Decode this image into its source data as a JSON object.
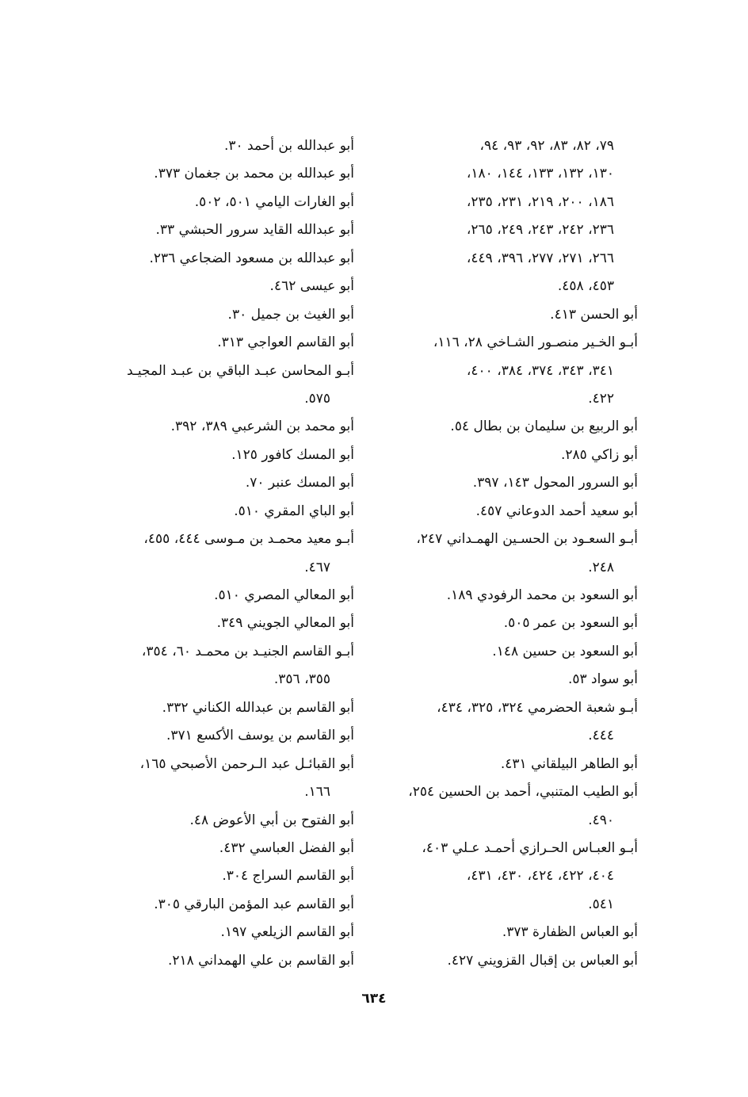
{
  "page_number": "٦٣٤",
  "columns": {
    "right": [
      {
        "lines": [
          "٧٩، ٨٢، ٨٣، ٩٢، ٩٣، ٩٤،",
          "١٣٠، ١٣٢، ١٣٣، ١٤٤، ١٨٠،",
          "١٨٦، ٢٠٠، ٢١٩، ٢٣١، ٢٣٥،",
          "٢٣٦، ٢٤٢، ٢٤٣، ٢٤٩، ٢٦٥،",
          "٢٦٦، ٢٧١، ٢٧٧، ٣٩٦، ٤٤٩،",
          "٤٥٣، ٤٥٨."
        ],
        "continued": true
      },
      {
        "lines": [
          "أبو الحسن ٤١٣."
        ]
      },
      {
        "lines": [
          "أبـو الخـير منصـور الشـاخي ٢٨، ١١٦،",
          "٣٤١، ٣٤٣، ٣٧٤، ٣٨٤، ٤٠٠،",
          "٤٢٢."
        ]
      },
      {
        "lines": [
          "أبو الربيع بن سليمان بن بطال ٥٤."
        ]
      },
      {
        "lines": [
          "أبو زاكي ٢٨٥."
        ]
      },
      {
        "lines": [
          "أبو السرور المحول ١٤٣، ٣٩٧."
        ]
      },
      {
        "lines": [
          "أبو سعيد أحمد الدوعاني ٤٥٧."
        ]
      },
      {
        "lines": [
          "أبـو السعـود بن الحسـين الهمـداني ٢٤٧،",
          "٢٤٨."
        ]
      },
      {
        "lines": [
          "أبو السعود بن محمد الرفودي ١٨٩."
        ]
      },
      {
        "lines": [
          "أبو السعود بن عمر ٥٠٥."
        ]
      },
      {
        "lines": [
          "أبو السعود بن حسين ١٤٨."
        ]
      },
      {
        "lines": [
          "أبو سواد ٥٣."
        ]
      },
      {
        "lines": [
          "أبـو شعبة الحضرمي ٣٢٤، ٣٢٥، ٤٣٤،",
          "٤٤٤."
        ]
      },
      {
        "lines": [
          "أبو الطاهر البيلقاني ٤٣١."
        ]
      },
      {
        "lines": [
          "أبو الطيب المتنبي، أحمد بن الحسين ٢٥٤،",
          "٤٩٠."
        ]
      },
      {
        "lines": [
          "أبـو العبـاس الحـرازي أحمـد عـلي ٤٠٣،",
          "٤٠٤، ٤٢٢، ٤٢٤، ٤٣٠، ٤٣١،",
          "٥٤١."
        ]
      },
      {
        "lines": [
          "أبو العباس الظفارة ٣٧٣."
        ]
      },
      {
        "lines": [
          "أبو العباس بن إقبال القزويني ٤٢٧."
        ]
      }
    ],
    "left": [
      {
        "lines": [
          "أبو عبدالله بن أحمد ٣٠."
        ]
      },
      {
        "lines": [
          "أبو عبدالله بن محمد بن جغمان ٣٧٣."
        ]
      },
      {
        "lines": [
          "أبو الغارات اليامي ٥٠١، ٥٠٢."
        ]
      },
      {
        "lines": [
          "أبو عبدالله القايد سرور الحبشي ٣٣."
        ]
      },
      {
        "lines": [
          "أبو عبدالله بن مسعود الضجاعي ٢٣٦."
        ]
      },
      {
        "lines": [
          "أبو عيسى ٤٦٢."
        ]
      },
      {
        "lines": [
          "أبو الغيث بن جميل ٣٠."
        ]
      },
      {
        "lines": [
          "أبو القاسم العواجي ٣١٣."
        ]
      },
      {
        "lines": [
          "أبـو المحاسن عبـد الباقي بن عبـد المجيـد",
          "٥٧٥."
        ]
      },
      {
        "lines": [
          "أبو محمد بن الشرعبي ٣٨٩، ٣٩٢."
        ]
      },
      {
        "lines": [
          "أبو المسك كافور ١٢٥."
        ]
      },
      {
        "lines": [
          "أبو المسك عنبر ٧٠."
        ]
      },
      {
        "lines": [
          "أبو الباي المقري ٥١٠."
        ]
      },
      {
        "lines": [
          "أبـو معيد محمـد بن مـوسى ٤٤٤، ٤٥٥،",
          "٤٦٧."
        ]
      },
      {
        "lines": [
          "أبو المعالي المصري ٥١٠."
        ]
      },
      {
        "lines": [
          "أبو المعالي الجويني ٣٤٩."
        ]
      },
      {
        "lines": [
          "أبـو القاسم الجنيـد بن محمـد ٦٠، ٣٥٤،",
          "٣٥٥، ٣٥٦."
        ]
      },
      {
        "lines": [
          "أبو القاسم بن عبدالله الكناني ٣٣٢."
        ]
      },
      {
        "lines": [
          "أبو القاسم بن يوسف الأكسع ٣٧١."
        ]
      },
      {
        "lines": [
          "أبو القبائـل عبد الـرحمن الأصبحي ١٦٥،",
          "١٦٦."
        ]
      },
      {
        "lines": [
          "أبو الفتوح بن أبي الأعوض ٤٨."
        ]
      },
      {
        "lines": [
          "أبو الفضل العباسي ٤٣٢."
        ]
      },
      {
        "lines": [
          "أبو القاسم السراج ٣٠٤."
        ]
      },
      {
        "lines": [
          "أبو القاسم عبد المؤمن البارقي ٣٠٥."
        ]
      },
      {
        "lines": [
          "أبو القاسم الزيلعي ١٩٧."
        ]
      },
      {
        "lines": [
          "أبو القاسم بن علي الهمداني ٢١٨."
        ]
      }
    ]
  }
}
